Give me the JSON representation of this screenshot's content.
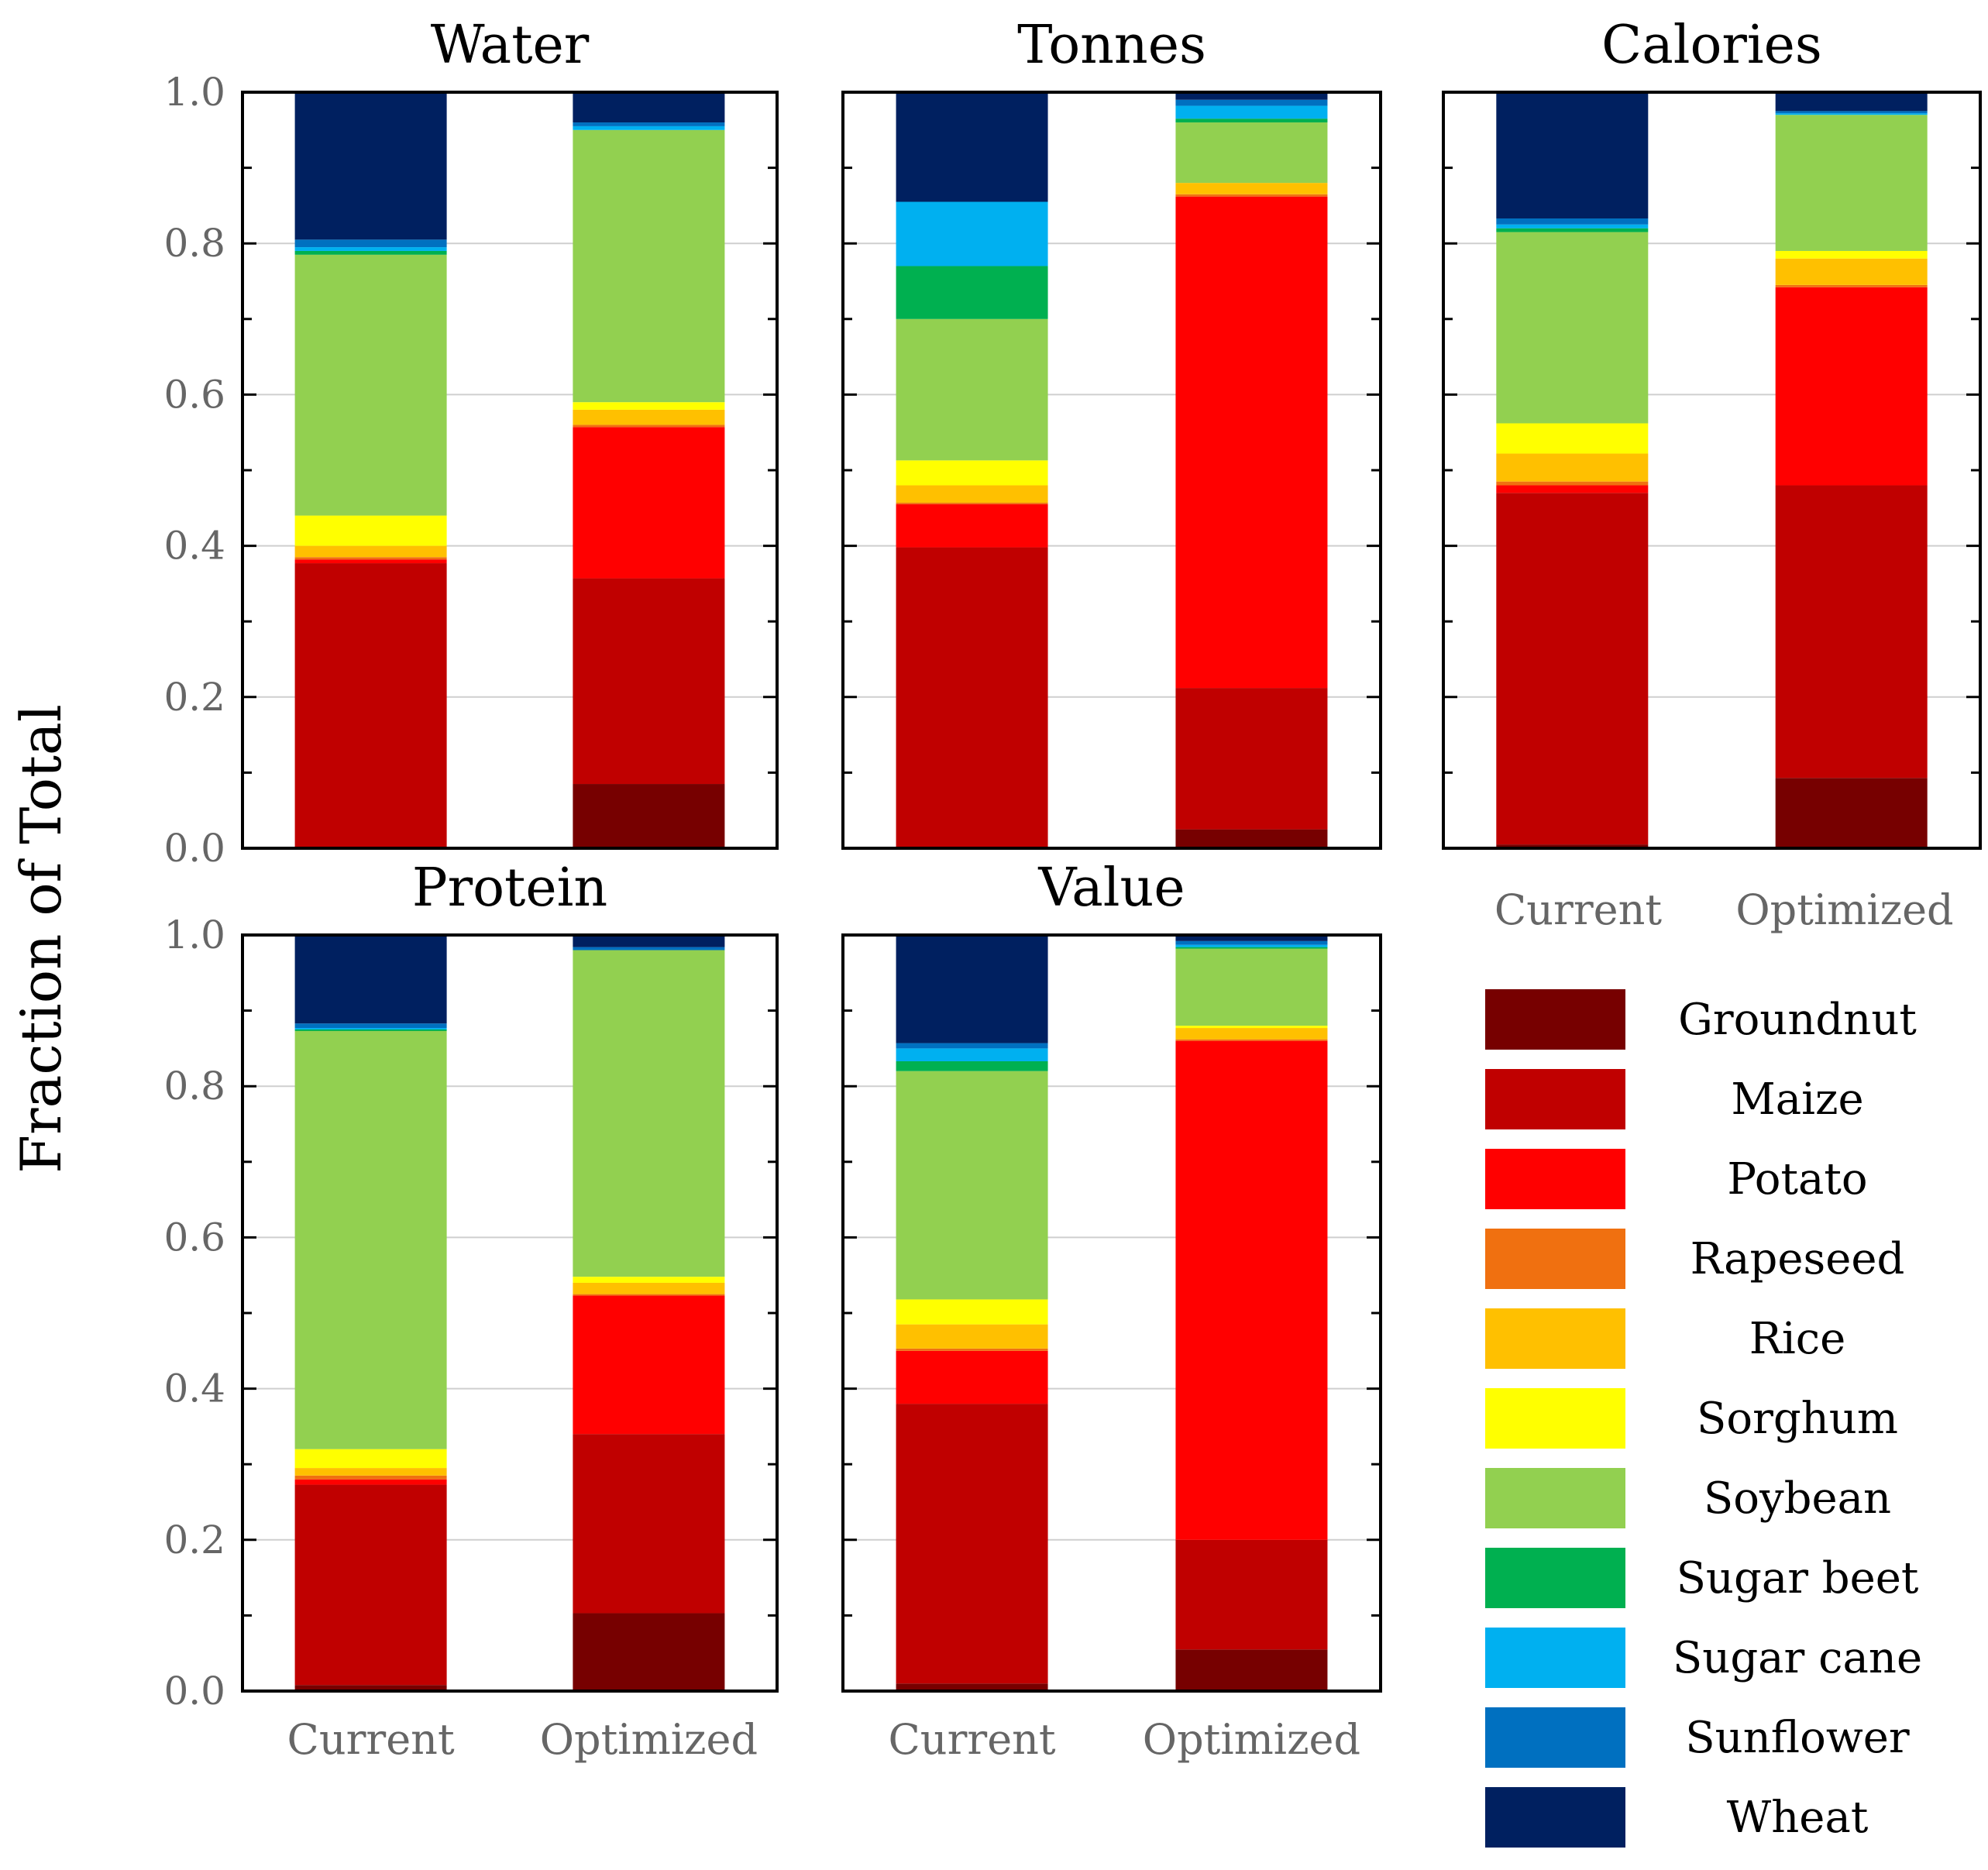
{
  "figure": {
    "y_axis_label": "Fraction of Total",
    "tick_labels": [
      "0.0",
      "0.2",
      "0.4",
      "0.6",
      "0.8",
      "1.0"
    ]
  },
  "legend": {
    "items": [
      {
        "label": "Groundnut",
        "color": "#770000"
      },
      {
        "label": "Maize",
        "color": "#C00000"
      },
      {
        "label": "Potato",
        "color": "#FF0000"
      },
      {
        "label": "Rapeseed",
        "color": "#F07010"
      },
      {
        "label": "Rice",
        "color": "#FFC000"
      },
      {
        "label": "Sorghum",
        "color": "#FFFF00"
      },
      {
        "label": "Soybean",
        "color": "#92D050"
      },
      {
        "label": "Sugar beet",
        "color": "#00B050"
      },
      {
        "label": "Sugar cane",
        "color": "#00B0F0"
      },
      {
        "label": "Sunflower",
        "color": "#0070C0"
      },
      {
        "label": "Wheat",
        "color": "#002060"
      }
    ]
  },
  "chart_data": [
    {
      "type": "bar",
      "stacked": true,
      "title": "Water",
      "categories": [
        "Current",
        "Optimized"
      ],
      "ylim": [
        0,
        1
      ],
      "grid": true,
      "series": [
        {
          "name": "Groundnut",
          "values": [
            0.002,
            0.085
          ]
        },
        {
          "name": "Maize",
          "values": [
            0.375,
            0.272
          ]
        },
        {
          "name": "Potato",
          "values": [
            0.005,
            0.2
          ]
        },
        {
          "name": "Rapeseed",
          "values": [
            0.003,
            0.003
          ]
        },
        {
          "name": "Rice",
          "values": [
            0.015,
            0.02
          ]
        },
        {
          "name": "Sorghum",
          "values": [
            0.04,
            0.01
          ]
        },
        {
          "name": "Soybean",
          "values": [
            0.345,
            0.36
          ]
        },
        {
          "name": "Sugar beet",
          "values": [
            0.005,
            0.0
          ]
        },
        {
          "name": "Sugar cane",
          "values": [
            0.005,
            0.005
          ]
        },
        {
          "name": "Sunflower",
          "values": [
            0.01,
            0.005
          ]
        },
        {
          "name": "Wheat",
          "values": [
            0.195,
            0.04
          ]
        }
      ]
    },
    {
      "type": "bar",
      "stacked": true,
      "title": "Tonnes",
      "categories": [
        "Current",
        "Optimized"
      ],
      "ylim": [
        0,
        1
      ],
      "grid": true,
      "series": [
        {
          "name": "Groundnut",
          "values": [
            0.0,
            0.025
          ]
        },
        {
          "name": "Maize",
          "values": [
            0.398,
            0.187
          ]
        },
        {
          "name": "Potato",
          "values": [
            0.057,
            0.65
          ]
        },
        {
          "name": "Rapeseed",
          "values": [
            0.002,
            0.003
          ]
        },
        {
          "name": "Rice",
          "values": [
            0.023,
            0.015
          ]
        },
        {
          "name": "Sorghum",
          "values": [
            0.033,
            0.0
          ]
        },
        {
          "name": "Soybean",
          "values": [
            0.187,
            0.08
          ]
        },
        {
          "name": "Sugar beet",
          "values": [
            0.07,
            0.005
          ]
        },
        {
          "name": "Sugar cane",
          "values": [
            0.085,
            0.017
          ]
        },
        {
          "name": "Sunflower",
          "values": [
            0.0,
            0.008
          ]
        },
        {
          "name": "Wheat",
          "values": [
            0.145,
            0.01
          ]
        }
      ]
    },
    {
      "type": "bar",
      "stacked": true,
      "title": "Calories",
      "categories": [
        "Current",
        "Optimized"
      ],
      "ylim": [
        0,
        1
      ],
      "grid": true,
      "series": [
        {
          "name": "Groundnut",
          "values": [
            0.005,
            0.093
          ]
        },
        {
          "name": "Maize",
          "values": [
            0.465,
            0.387
          ]
        },
        {
          "name": "Potato",
          "values": [
            0.01,
            0.262
          ]
        },
        {
          "name": "Rapeseed",
          "values": [
            0.005,
            0.003
          ]
        },
        {
          "name": "Rice",
          "values": [
            0.037,
            0.035
          ]
        },
        {
          "name": "Sorghum",
          "values": [
            0.04,
            0.01
          ]
        },
        {
          "name": "Soybean",
          "values": [
            0.253,
            0.18
          ]
        },
        {
          "name": "Sugar beet",
          "values": [
            0.005,
            0.0
          ]
        },
        {
          "name": "Sugar cane",
          "values": [
            0.005,
            0.002
          ]
        },
        {
          "name": "Sunflower",
          "values": [
            0.008,
            0.003
          ]
        },
        {
          "name": "Wheat",
          "values": [
            0.167,
            0.027
          ]
        }
      ]
    },
    {
      "type": "bar",
      "stacked": true,
      "title": "Protein",
      "categories": [
        "Current",
        "Optimized"
      ],
      "ylim": [
        0,
        1
      ],
      "grid": true,
      "series": [
        {
          "name": "Groundnut",
          "values": [
            0.008,
            0.103
          ]
        },
        {
          "name": "Maize",
          "values": [
            0.265,
            0.237
          ]
        },
        {
          "name": "Potato",
          "values": [
            0.007,
            0.183
          ]
        },
        {
          "name": "Rapeseed",
          "values": [
            0.005,
            0.002
          ]
        },
        {
          "name": "Rice",
          "values": [
            0.01,
            0.015
          ]
        },
        {
          "name": "Sorghum",
          "values": [
            0.025,
            0.008
          ]
        },
        {
          "name": "Soybean",
          "values": [
            0.553,
            0.432
          ]
        },
        {
          "name": "Sugar beet",
          "values": [
            0.002,
            0.0
          ]
        },
        {
          "name": "Sugar cane",
          "values": [
            0.002,
            0.0
          ]
        },
        {
          "name": "Sunflower",
          "values": [
            0.006,
            0.004
          ]
        },
        {
          "name": "Wheat",
          "values": [
            0.117,
            0.016
          ]
        }
      ]
    },
    {
      "type": "bar",
      "stacked": true,
      "title": "Value",
      "categories": [
        "Current",
        "Optimized"
      ],
      "ylim": [
        0,
        1
      ],
      "grid": true,
      "series": [
        {
          "name": "Groundnut",
          "values": [
            0.01,
            0.055
          ]
        },
        {
          "name": "Maize",
          "values": [
            0.37,
            0.145
          ]
        },
        {
          "name": "Potato",
          "values": [
            0.07,
            0.66
          ]
        },
        {
          "name": "Rapeseed",
          "values": [
            0.003,
            0.002
          ]
        },
        {
          "name": "Rice",
          "values": [
            0.032,
            0.015
          ]
        },
        {
          "name": "Sorghum",
          "values": [
            0.033,
            0.003
          ]
        },
        {
          "name": "Soybean",
          "values": [
            0.302,
            0.102
          ]
        },
        {
          "name": "Sugar beet",
          "values": [
            0.013,
            0.002
          ]
        },
        {
          "name": "Sugar cane",
          "values": [
            0.017,
            0.003
          ]
        },
        {
          "name": "Sunflower",
          "values": [
            0.007,
            0.005
          ]
        },
        {
          "name": "Wheat",
          "values": [
            0.143,
            0.008
          ]
        }
      ]
    }
  ]
}
